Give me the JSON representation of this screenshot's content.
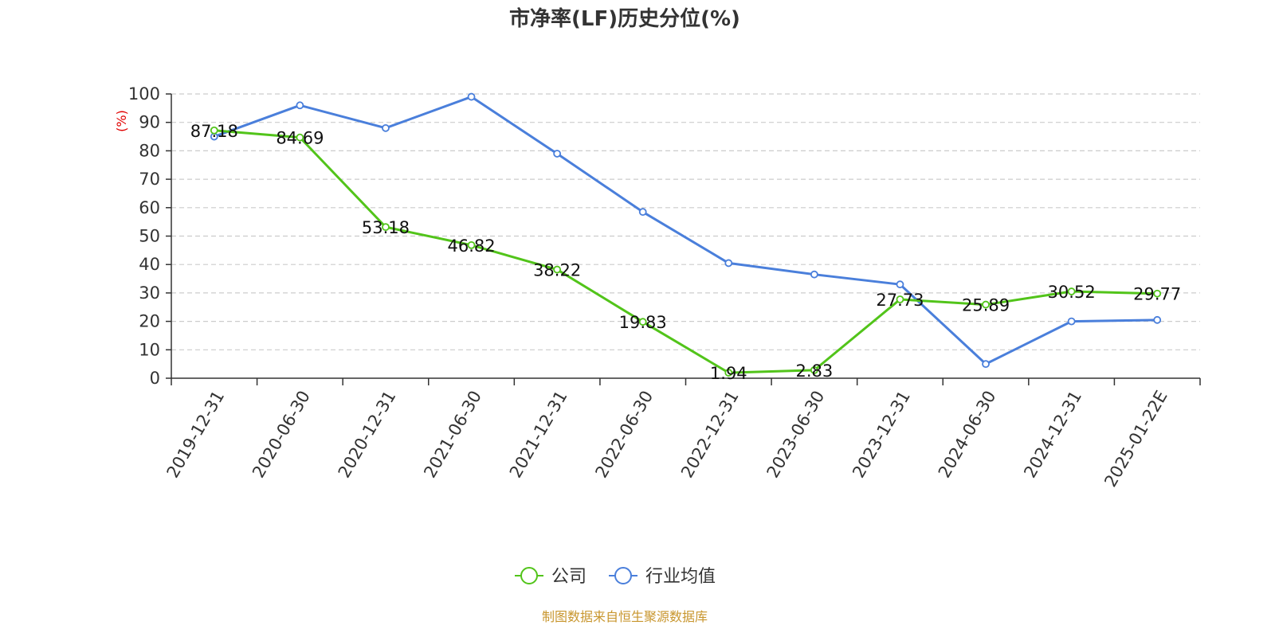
{
  "chart_data": {
    "type": "line",
    "title": "市净率(LF)历史分位(%)",
    "ylabel": "(%)",
    "xlabel": "",
    "ylim": [
      0,
      100
    ],
    "yticks": [
      0,
      10,
      20,
      30,
      40,
      50,
      60,
      70,
      80,
      90,
      100
    ],
    "grid": true,
    "legend_position": "bottom-center",
    "categories": [
      "2019-12-31",
      "2020-06-30",
      "2020-12-31",
      "2021-06-30",
      "2021-12-31",
      "2022-06-30",
      "2022-12-31",
      "2023-06-30",
      "2023-12-31",
      "2024-06-30",
      "2024-12-31",
      "2025-01-22E"
    ],
    "series": [
      {
        "name": "公司",
        "color": "#52c41a",
        "show_labels": true,
        "values": [
          87.18,
          84.69,
          53.18,
          46.82,
          38.22,
          19.83,
          1.94,
          2.83,
          27.73,
          25.89,
          30.52,
          29.77
        ],
        "labels": [
          "87.18",
          "84.69",
          "53.18",
          "46.82",
          "38.22",
          "19.83",
          "1.94",
          "2.83",
          "27.73",
          "25.89",
          "30.52",
          "29.77"
        ]
      },
      {
        "name": "行业均值",
        "color": "#4a7fdb",
        "show_labels": false,
        "values": [
          85,
          96,
          88,
          99,
          79,
          58.5,
          40.5,
          36.5,
          33,
          5,
          20,
          20.5
        ]
      }
    ],
    "source": "制图数据来自恒生聚源数据库",
    "colors": {
      "unit": "#e00000",
      "source": "#c8962e",
      "grid": "#cccccc",
      "axis": "#333333"
    }
  }
}
